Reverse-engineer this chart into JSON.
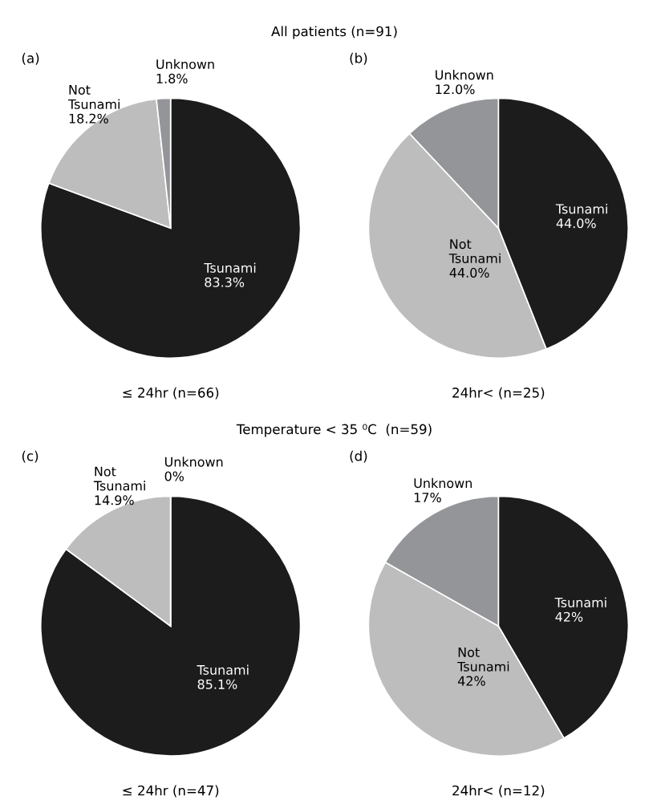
{
  "chart_data": [
    {
      "type": "pie",
      "title": "(a)",
      "xlabel": "≤ 24hr (n=66)",
      "annotations": [
        "All patients (n=91)"
      ],
      "categories": [
        "Tsunami",
        "Not Tsunami",
        "Unknown"
      ],
      "values": [
        83.3,
        18.2,
        1.8
      ],
      "value_labels": [
        "83.3%",
        "18.2%",
        "1.8%"
      ],
      "colors": [
        "#1c1c1c",
        "#bdbdbd",
        "#939598"
      ]
    },
    {
      "type": "pie",
      "title": "(b)",
      "xlabel": "24hr< (n=25)",
      "categories": [
        "Tsunami",
        "Not Tsunami",
        "Unknown"
      ],
      "values": [
        44.0,
        44.0,
        12.0
      ],
      "value_labels": [
        "44.0%",
        "44.0%",
        "12.0%"
      ],
      "colors": [
        "#1c1c1c",
        "#bdbdbd",
        "#939598"
      ]
    },
    {
      "type": "pie",
      "title": "(c)",
      "xlabel": "≤ 24hr (n=47)",
      "annotations": [
        "Temperature < 35 ⁰C  (n=59)"
      ],
      "categories": [
        "Tsunami",
        "Not Tsunami",
        "Unknown"
      ],
      "values": [
        85.1,
        14.9,
        0
      ],
      "value_labels": [
        "85.1%",
        "14.9%",
        "0%"
      ],
      "colors": [
        "#1c1c1c",
        "#bdbdbd",
        "#939598"
      ]
    },
    {
      "type": "pie",
      "title": "(d)",
      "xlabel": "24hr< (n=12)",
      "categories": [
        "Tsunami",
        "Not Tsunami",
        "Unknown"
      ],
      "values": [
        42,
        42,
        17
      ],
      "value_labels": [
        "42%",
        "42%",
        "17%"
      ],
      "colors": [
        "#1c1c1c",
        "#bdbdbd",
        "#939598"
      ]
    }
  ]
}
